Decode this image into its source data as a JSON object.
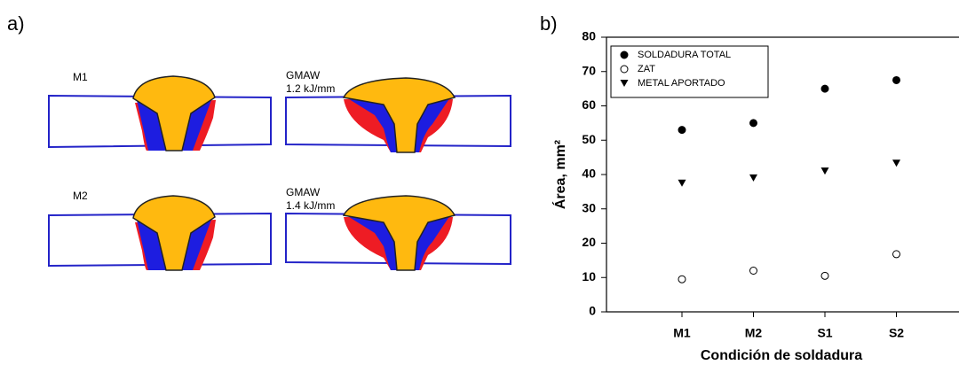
{
  "panel_a": {
    "label": "a)",
    "welds": [
      {
        "name": "M1"
      },
      {
        "name": "GMAW",
        "energy": "1.2 kJ/mm"
      },
      {
        "name": "M2"
      },
      {
        "name": "GMAW",
        "energy": "1.4 kJ/mm"
      }
    ]
  },
  "chart_data": {
    "type": "scatter",
    "panel_label": "b)",
    "x_label": "Condición de soldadura",
    "y_label": "Área, mm²",
    "categories": [
      "M1",
      "M2",
      "S1",
      "S2"
    ],
    "series": [
      {
        "name": "SOLDADURA TOTAL",
        "marker": "filled-circle",
        "color": "#000000",
        "values": [
          53,
          55,
          65,
          67.5
        ]
      },
      {
        "name": "ZAT",
        "marker": "open-circle",
        "color": "#000000",
        "values": [
          9.5,
          12,
          10.5,
          16.8
        ]
      },
      {
        "name": "METAL APORTADO",
        "marker": "filled-triangle-down",
        "color": "#000000",
        "values": [
          37.5,
          39,
          41,
          43.3
        ]
      }
    ],
    "ylim": [
      0,
      80
    ],
    "yticks": [
      0,
      10,
      20,
      30,
      40,
      50,
      60,
      70,
      80
    ],
    "legend": "upper left"
  }
}
